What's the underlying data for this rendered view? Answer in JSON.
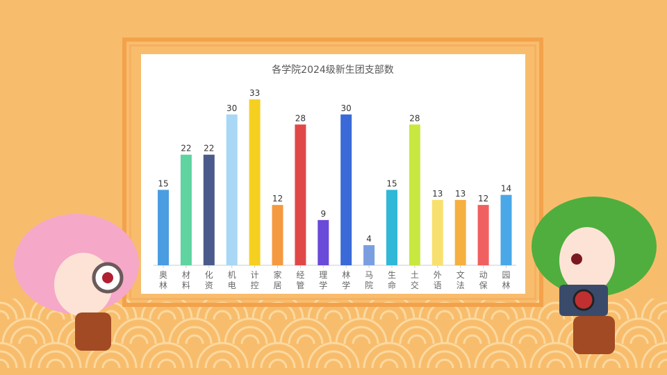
{
  "chart_data": {
    "type": "bar",
    "title": "各学院2024级新生团支部数",
    "categories": [
      "奥林",
      "材料",
      "化资",
      "机电",
      "计控",
      "家居",
      "经管",
      "理学",
      "林学",
      "马院",
      "生命",
      "土交",
      "外语",
      "文法",
      "动保",
      "园林"
    ],
    "values": [
      15,
      22,
      22,
      30,
      33,
      12,
      28,
      9,
      30,
      4,
      15,
      28,
      13,
      13,
      12,
      14
    ],
    "colors": [
      "#4a9de0",
      "#5fd3a0",
      "#4a5a8a",
      "#a8d8f5",
      "#f5d020",
      "#f59a40",
      "#e04848",
      "#6a4ad8",
      "#3a6ad8",
      "#7a9ee0",
      "#30b8d8",
      "#c8e840",
      "#f8e070",
      "#f5b040",
      "#f06060",
      "#4aa8e8"
    ],
    "ylim": [
      0,
      35
    ],
    "grid": false,
    "legend": "none",
    "data_labels": true
  },
  "background_color": "#f8bd6c"
}
